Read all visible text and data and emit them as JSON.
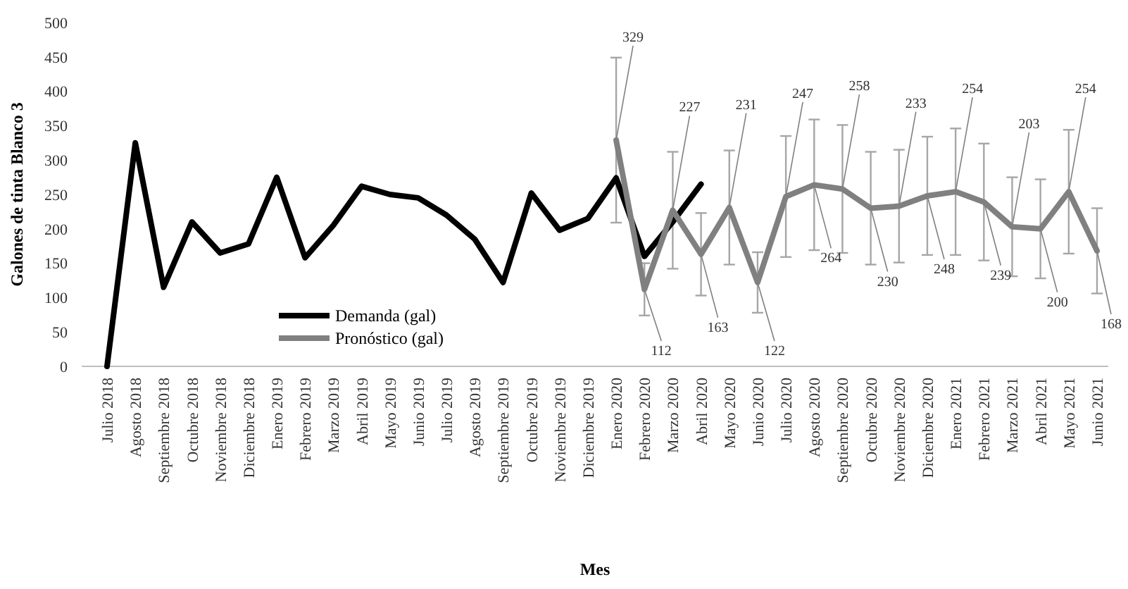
{
  "chart_data": {
    "type": "line",
    "xlabel": "Mes",
    "ylabel": "Galones de tinta Blanco 3",
    "categories": [
      "Julio 2018",
      "Agosto 2018",
      "Septiembre 2018",
      "Octubre 2018",
      "Noviembre 2018",
      "Diciembre 2018",
      "Enero 2019",
      "Febrero 2019",
      "Marzo 2019",
      "Abril 2019",
      "Mayo 2019",
      "Junio 2019",
      "Julio 2019",
      "Agosto 2019",
      "Septiembre 2019",
      "Octubre 2019",
      "Noviembre 2019",
      "Diciembre 2019",
      "Enero 2020",
      "Febrero 2020",
      "Marzo 2020",
      "Abril 2020",
      "Mayo 2020",
      "Junio 2020",
      "Julio 2020",
      "Agosto 2020",
      "Septiembre 2020",
      "Octubre 2020",
      "Noviembre 2020",
      "Diciembre 2020",
      "Enero 2021",
      "Febrero 2021",
      "Marzo 2021",
      "Abril 2021",
      "Mayo 2021",
      "Junio 2021"
    ],
    "ylim": [
      0,
      500
    ],
    "yticks": [
      0,
      50,
      100,
      150,
      200,
      250,
      300,
      350,
      400,
      450,
      500
    ],
    "grid": false,
    "legend": "bottom left",
    "line_style": "solid",
    "marker": "none",
    "series": [
      {
        "name": "Demanda (gal)",
        "color": "#000000",
        "values": [
          0,
          325,
          115,
          210,
          165,
          178,
          275,
          158,
          205,
          262,
          250,
          245,
          220,
          185,
          122,
          252,
          198,
          215,
          274,
          160,
          210,
          265,
          null,
          null,
          null,
          null,
          null,
          null,
          null,
          null,
          null,
          null,
          null,
          null,
          null,
          null
        ]
      },
      {
        "name": "Pronóstico (gal)",
        "color": "#808080",
        "values": [
          null,
          null,
          null,
          null,
          null,
          null,
          null,
          null,
          null,
          null,
          null,
          null,
          null,
          null,
          null,
          null,
          null,
          null,
          329,
          112,
          227,
          163,
          231,
          122,
          247,
          264,
          258,
          230,
          233,
          248,
          254,
          239,
          203,
          200,
          254,
          168
        ],
        "errors": [
          null,
          null,
          null,
          null,
          null,
          null,
          null,
          null,
          null,
          null,
          null,
          null,
          null,
          null,
          null,
          null,
          null,
          null,
          120,
          38,
          85,
          60,
          83,
          44,
          88,
          95,
          93,
          82,
          82,
          86,
          92,
          85,
          72,
          72,
          90,
          62
        ],
        "value_labels": [
          null,
          null,
          null,
          null,
          null,
          null,
          null,
          null,
          null,
          null,
          null,
          null,
          null,
          null,
          null,
          null,
          null,
          null,
          "329",
          "112",
          "227",
          "163",
          "231",
          "122",
          "247",
          "264",
          "258",
          "230",
          "233",
          "248",
          "254",
          "239",
          "203",
          "200",
          "254",
          "168"
        ]
      }
    ]
  }
}
